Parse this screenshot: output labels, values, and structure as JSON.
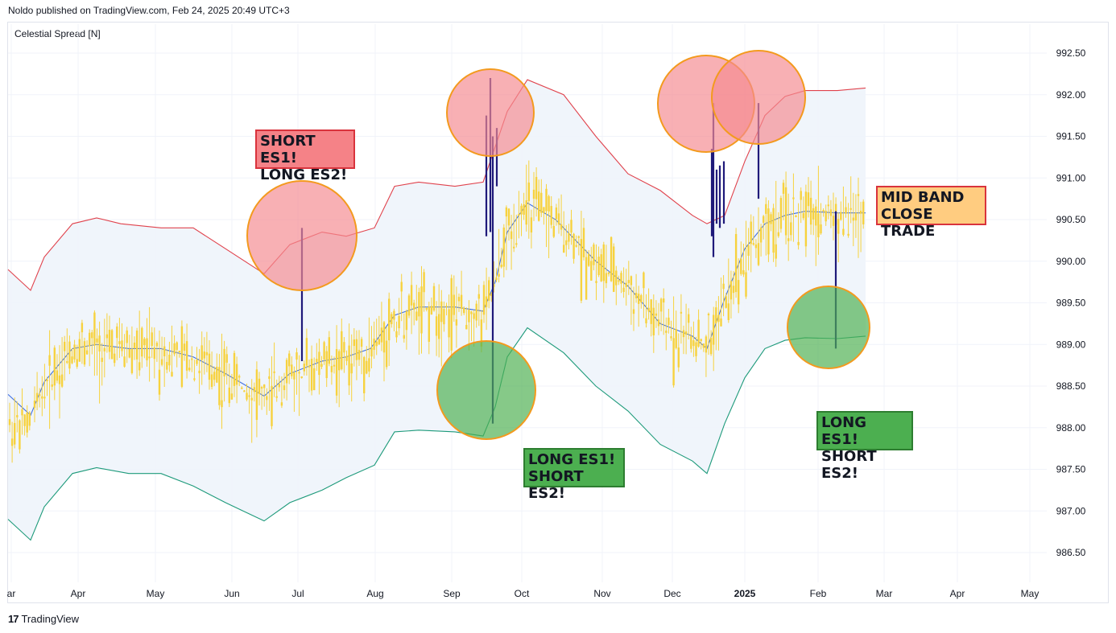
{
  "header": {
    "published": "Noldo published on TradingView.com, Feb 24, 2025 20:49 UTC+3"
  },
  "symbol": {
    "label": "Celestial Spread [N]"
  },
  "footer": {
    "brand": "TradingView",
    "logo": "17"
  },
  "colors": {
    "candle": "#f7d23e",
    "spike": "#1f1a7a",
    "upper_band": "#e0424c",
    "middle_band": "#3f6fe0",
    "lower_band": "#1d9a7a",
    "band_fill": "#eef4fb",
    "red_circle": "#f58a90",
    "green_circle": "#4caf50",
    "circle_stroke": "#f39a1e"
  },
  "annotations": {
    "short_es1": {
      "line1": "SHORT ES1!",
      "line2": "LONG ES2!"
    },
    "long_es1_a": {
      "line1": "LONG ES1!",
      "line2": "SHORT ES2!"
    },
    "long_es1_b": {
      "line1": "LONG ES1!",
      "line2": "SHORT ES2!"
    },
    "mid_band": {
      "line1": "MID BAND",
      "line2": "CLOSE TRADE"
    }
  },
  "chart_data": {
    "type": "line",
    "title": "Celestial Spread [N]",
    "y_axis": {
      "side": "right",
      "ticks": [
        "992.50",
        "992.00",
        "991.50",
        "991.00",
        "990.50",
        "990.00",
        "989.50",
        "989.00",
        "988.50",
        "988.00",
        "987.50",
        "987.00",
        "986.50"
      ],
      "ylim": [
        986.25,
        992.75
      ]
    },
    "x_axis": {
      "ticks": [
        "ar",
        "Apr",
        "May",
        "Jun",
        "Jul",
        "Aug",
        "Sep",
        "Oct",
        "Nov",
        "Dec",
        "2025",
        "Feb",
        "Mar",
        "Apr",
        "May"
      ]
    },
    "grid": true,
    "x": [
      "Mar",
      "Apr",
      "May",
      "Jun",
      "Jul",
      "Aug",
      "Sep",
      "Oct",
      "Nov",
      "Dec",
      "2025",
      "Feb"
    ],
    "series": [
      {
        "values": [
          989.9,
          990.5,
          990.35,
          989.95,
          990.3,
          990.45,
          990.95,
          992.15,
          991.65,
          990.55,
          991.05,
          992.05
        ]
      },
      {
        "values": [
          988.4,
          989.0,
          988.95,
          988.35,
          988.8,
          989.2,
          989.45,
          990.7,
          990.05,
          989.1,
          990.3,
          990.55
        ]
      },
      {
        "values": [
          986.9,
          987.5,
          987.45,
          986.9,
          987.3,
          987.55,
          987.95,
          989.2,
          988.55,
          987.6,
          988.95,
          989.1
        ]
      }
    ]
  }
}
